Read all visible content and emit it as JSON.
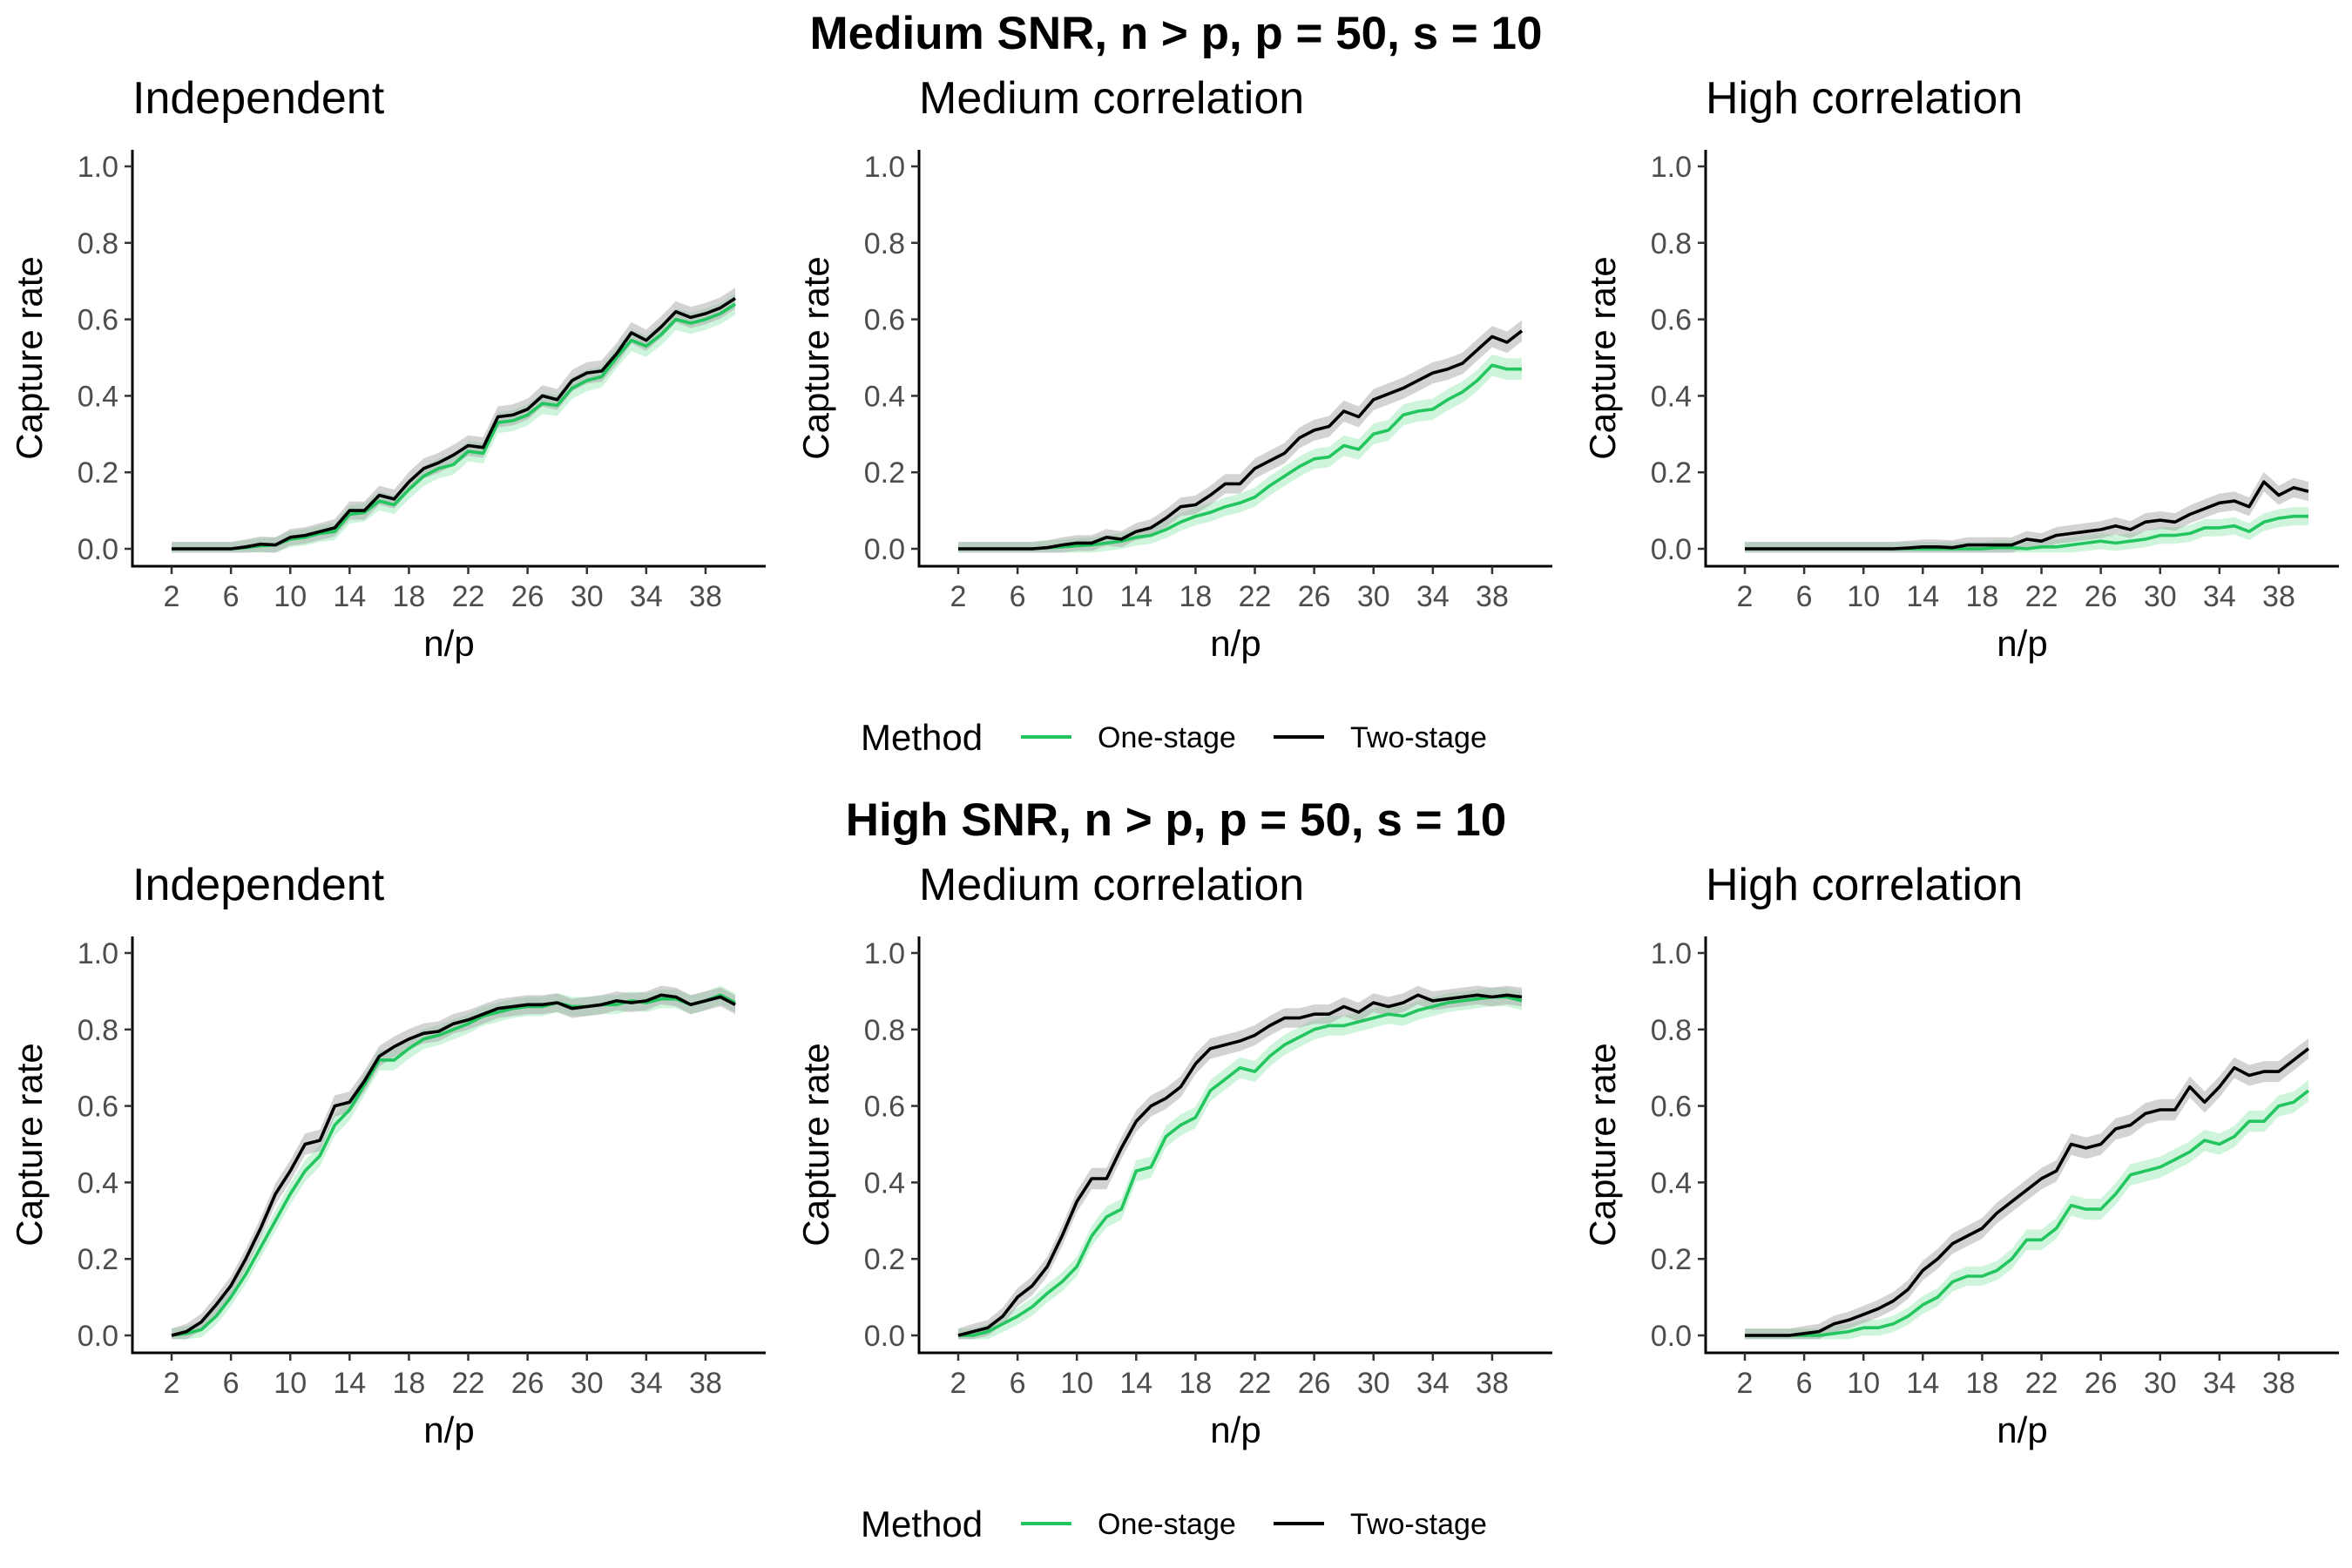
{
  "legend": {
    "title": "Method",
    "items": [
      {
        "label": "One-stage",
        "color": "#22c55e"
      },
      {
        "label": "Two-stage",
        "color": "#000000"
      }
    ]
  },
  "colors": {
    "one_stage": "#22c55e",
    "one_stage_band": "#a7ebbf",
    "two_stage": "#000000",
    "two_stage_band": "#9e9e9e"
  },
  "chart_data": [
    {
      "title": "Medium SNR, n > p, p = 50, s = 10",
      "panels": [
        {
          "type": "line",
          "title": "Independent",
          "xlabel": "n/p",
          "ylabel": "Capture rate",
          "xlim": [
            2,
            40
          ],
          "ylim": [
            0,
            1
          ],
          "xticks": [
            2,
            6,
            10,
            14,
            18,
            22,
            26,
            30,
            34,
            38
          ],
          "yticks": [
            "0.0",
            "0.2",
            "0.4",
            "0.6",
            "0.8",
            "1.0"
          ],
          "x": [
            2,
            3,
            4,
            5,
            6,
            7,
            8,
            9,
            10,
            11,
            12,
            13,
            14,
            15,
            16,
            17,
            18,
            19,
            20,
            21,
            22,
            23,
            24,
            25,
            26,
            27,
            28,
            29,
            30,
            31,
            32,
            33,
            34,
            35,
            36,
            37,
            38,
            39,
            40
          ],
          "series": [
            {
              "name": "One-stage",
              "values": [
                0,
                0,
                0,
                0,
                0,
                0.003,
                0.008,
                0.01,
                0.025,
                0.03,
                0.04,
                0.045,
                0.09,
                0.095,
                0.125,
                0.115,
                0.155,
                0.19,
                0.21,
                0.22,
                0.255,
                0.25,
                0.33,
                0.335,
                0.35,
                0.38,
                0.375,
                0.42,
                0.44,
                0.45,
                0.5,
                0.545,
                0.53,
                0.56,
                0.6,
                0.59,
                0.6,
                0.615,
                0.64
              ]
            },
            {
              "name": "Two-stage",
              "values": [
                0,
                0,
                0,
                0,
                0,
                0.005,
                0.012,
                0.01,
                0.03,
                0.035,
                0.045,
                0.055,
                0.1,
                0.1,
                0.14,
                0.13,
                0.175,
                0.21,
                0.225,
                0.245,
                0.27,
                0.265,
                0.345,
                0.35,
                0.365,
                0.4,
                0.39,
                0.44,
                0.46,
                0.465,
                0.51,
                0.565,
                0.545,
                0.58,
                0.62,
                0.605,
                0.615,
                0.63,
                0.655
              ]
            }
          ]
        },
        {
          "type": "line",
          "title": "Medium correlation",
          "xlabel": "n/p",
          "ylabel": "Capture rate",
          "xlim": [
            2,
            40
          ],
          "ylim": [
            0,
            1
          ],
          "xticks": [
            2,
            6,
            10,
            14,
            18,
            22,
            26,
            30,
            34,
            38
          ],
          "yticks": [
            "0.0",
            "0.2",
            "0.4",
            "0.6",
            "0.8",
            "1.0"
          ],
          "x": [
            2,
            3,
            4,
            5,
            6,
            7,
            8,
            9,
            10,
            11,
            12,
            13,
            14,
            15,
            16,
            17,
            18,
            19,
            20,
            21,
            22,
            23,
            24,
            25,
            26,
            27,
            28,
            29,
            30,
            31,
            32,
            33,
            34,
            35,
            36,
            37,
            38,
            39,
            40
          ],
          "series": [
            {
              "name": "One-stage",
              "values": [
                0,
                0,
                0,
                0,
                0,
                0,
                0.003,
                0.005,
                0.008,
                0.01,
                0.015,
                0.02,
                0.03,
                0.035,
                0.05,
                0.07,
                0.085,
                0.095,
                0.11,
                0.12,
                0.135,
                0.165,
                0.19,
                0.215,
                0.235,
                0.24,
                0.27,
                0.26,
                0.3,
                0.31,
                0.35,
                0.36,
                0.365,
                0.39,
                0.41,
                0.44,
                0.48,
                0.47,
                0.47
              ]
            },
            {
              "name": "Two-stage",
              "values": [
                0,
                0,
                0,
                0,
                0,
                0,
                0.003,
                0.01,
                0.015,
                0.015,
                0.03,
                0.025,
                0.045,
                0.055,
                0.08,
                0.11,
                0.115,
                0.14,
                0.17,
                0.17,
                0.21,
                0.23,
                0.25,
                0.29,
                0.31,
                0.32,
                0.36,
                0.345,
                0.39,
                0.405,
                0.42,
                0.44,
                0.46,
                0.47,
                0.485,
                0.52,
                0.555,
                0.54,
                0.57
              ]
            }
          ]
        },
        {
          "type": "line",
          "title": "High correlation",
          "xlabel": "n/p",
          "ylabel": "Capture rate",
          "xlim": [
            2,
            40
          ],
          "ylim": [
            0,
            1
          ],
          "xticks": [
            2,
            6,
            10,
            14,
            18,
            22,
            26,
            30,
            34,
            38
          ],
          "yticks": [
            "0.0",
            "0.2",
            "0.4",
            "0.6",
            "0.8",
            "1.0"
          ],
          "x": [
            2,
            3,
            4,
            5,
            6,
            7,
            8,
            9,
            10,
            11,
            12,
            13,
            14,
            15,
            16,
            17,
            18,
            19,
            20,
            21,
            22,
            23,
            24,
            25,
            26,
            27,
            28,
            29,
            30,
            31,
            32,
            33,
            34,
            35,
            36,
            37,
            38,
            39,
            40
          ],
          "series": [
            {
              "name": "One-stage",
              "values": [
                0,
                0,
                0,
                0,
                0,
                0,
                0,
                0,
                0,
                0,
                0,
                0,
                0,
                0,
                0,
                0,
                0,
                0.003,
                0.003,
                0,
                0.005,
                0.005,
                0.01,
                0.015,
                0.02,
                0.015,
                0.02,
                0.025,
                0.035,
                0.035,
                0.04,
                0.055,
                0.055,
                0.06,
                0.045,
                0.07,
                0.08,
                0.085,
                0.085
              ]
            },
            {
              "name": "Two-stage",
              "values": [
                0,
                0,
                0,
                0,
                0,
                0,
                0,
                0,
                0,
                0,
                0,
                0.002,
                0.005,
                0.005,
                0.003,
                0.01,
                0.01,
                0.01,
                0.01,
                0.025,
                0.02,
                0.035,
                0.04,
                0.045,
                0.05,
                0.06,
                0.05,
                0.07,
                0.075,
                0.07,
                0.09,
                0.105,
                0.12,
                0.125,
                0.11,
                0.175,
                0.14,
                0.16,
                0.15
              ]
            }
          ]
        }
      ]
    },
    {
      "title": "High SNR, n > p, p = 50, s = 10",
      "panels": [
        {
          "type": "line",
          "title": "Independent",
          "xlabel": "n/p",
          "ylabel": "Capture rate",
          "xlim": [
            2,
            40
          ],
          "ylim": [
            0,
            1
          ],
          "xticks": [
            2,
            6,
            10,
            14,
            18,
            22,
            26,
            30,
            34,
            38
          ],
          "yticks": [
            "0.0",
            "0.2",
            "0.4",
            "0.6",
            "0.8",
            "1.0"
          ],
          "x": [
            2,
            3,
            4,
            5,
            6,
            7,
            8,
            9,
            10,
            11,
            12,
            13,
            14,
            15,
            16,
            17,
            18,
            19,
            20,
            21,
            22,
            23,
            24,
            25,
            26,
            27,
            28,
            29,
            30,
            31,
            32,
            33,
            34,
            35,
            36,
            37,
            38,
            39,
            40
          ],
          "series": [
            {
              "name": "One-stage",
              "values": [
                0,
                0.005,
                0.015,
                0.05,
                0.1,
                0.16,
                0.23,
                0.3,
                0.37,
                0.43,
                0.47,
                0.55,
                0.59,
                0.655,
                0.72,
                0.72,
                0.75,
                0.775,
                0.785,
                0.8,
                0.815,
                0.835,
                0.845,
                0.855,
                0.86,
                0.86,
                0.87,
                0.86,
                0.86,
                0.865,
                0.865,
                0.875,
                0.87,
                0.88,
                0.88,
                0.865,
                0.875,
                0.89,
                0.87
              ]
            },
            {
              "name": "Two-stage",
              "values": [
                0,
                0.01,
                0.035,
                0.08,
                0.13,
                0.2,
                0.28,
                0.37,
                0.43,
                0.5,
                0.51,
                0.6,
                0.61,
                0.665,
                0.73,
                0.755,
                0.775,
                0.79,
                0.795,
                0.815,
                0.825,
                0.84,
                0.855,
                0.86,
                0.865,
                0.865,
                0.87,
                0.855,
                0.86,
                0.865,
                0.875,
                0.87,
                0.875,
                0.89,
                0.885,
                0.865,
                0.875,
                0.885,
                0.865
              ]
            }
          ]
        },
        {
          "type": "line",
          "title": "Medium correlation",
          "xlabel": "n/p",
          "ylabel": "Capture rate",
          "xlim": [
            2,
            40
          ],
          "ylim": [
            0,
            1
          ],
          "xticks": [
            2,
            6,
            10,
            14,
            18,
            22,
            26,
            30,
            34,
            38
          ],
          "yticks": [
            "0.0",
            "0.2",
            "0.4",
            "0.6",
            "0.8",
            "1.0"
          ],
          "x": [
            2,
            3,
            4,
            5,
            6,
            7,
            8,
            9,
            10,
            11,
            12,
            13,
            14,
            15,
            16,
            17,
            18,
            19,
            20,
            21,
            22,
            23,
            24,
            25,
            26,
            27,
            28,
            29,
            30,
            31,
            32,
            33,
            34,
            35,
            36,
            37,
            38,
            39,
            40
          ],
          "series": [
            {
              "name": "One-stage",
              "values": [
                0,
                0,
                0.01,
                0.03,
                0.05,
                0.075,
                0.11,
                0.14,
                0.18,
                0.26,
                0.31,
                0.33,
                0.43,
                0.44,
                0.52,
                0.55,
                0.57,
                0.64,
                0.67,
                0.7,
                0.69,
                0.73,
                0.76,
                0.78,
                0.8,
                0.81,
                0.81,
                0.82,
                0.83,
                0.84,
                0.835,
                0.85,
                0.86,
                0.87,
                0.875,
                0.88,
                0.885,
                0.885,
                0.875
              ]
            },
            {
              "name": "Two-stage",
              "values": [
                0,
                0.01,
                0.02,
                0.05,
                0.1,
                0.13,
                0.18,
                0.26,
                0.35,
                0.41,
                0.41,
                0.49,
                0.56,
                0.6,
                0.62,
                0.65,
                0.71,
                0.75,
                0.76,
                0.77,
                0.785,
                0.81,
                0.83,
                0.83,
                0.84,
                0.84,
                0.86,
                0.845,
                0.87,
                0.86,
                0.87,
                0.89,
                0.875,
                0.88,
                0.885,
                0.89,
                0.885,
                0.89,
                0.885
              ]
            }
          ]
        },
        {
          "type": "line",
          "title": "High correlation",
          "xlabel": "n/p",
          "ylabel": "Capture rate",
          "xlim": [
            2,
            40
          ],
          "ylim": [
            0,
            1
          ],
          "xticks": [
            2,
            6,
            10,
            14,
            18,
            22,
            26,
            30,
            34,
            38
          ],
          "yticks": [
            "0.0",
            "0.2",
            "0.4",
            "0.6",
            "0.8",
            "1.0"
          ],
          "x": [
            2,
            3,
            4,
            5,
            6,
            7,
            8,
            9,
            10,
            11,
            12,
            13,
            14,
            15,
            16,
            17,
            18,
            19,
            20,
            21,
            22,
            23,
            24,
            25,
            26,
            27,
            28,
            29,
            30,
            31,
            32,
            33,
            34,
            35,
            36,
            37,
            38,
            39,
            40
          ],
          "series": [
            {
              "name": "One-stage",
              "values": [
                0,
                0,
                0,
                0,
                0,
                0,
                0.005,
                0.01,
                0.02,
                0.02,
                0.03,
                0.05,
                0.08,
                0.1,
                0.14,
                0.155,
                0.155,
                0.17,
                0.2,
                0.25,
                0.25,
                0.28,
                0.34,
                0.33,
                0.33,
                0.37,
                0.42,
                0.43,
                0.44,
                0.46,
                0.48,
                0.51,
                0.5,
                0.52,
                0.56,
                0.56,
                0.6,
                0.61,
                0.64
              ]
            },
            {
              "name": "Two-stage",
              "values": [
                0,
                0,
                0,
                0,
                0.005,
                0.01,
                0.03,
                0.04,
                0.055,
                0.07,
                0.09,
                0.12,
                0.17,
                0.2,
                0.24,
                0.26,
                0.28,
                0.32,
                0.35,
                0.38,
                0.41,
                0.43,
                0.5,
                0.49,
                0.5,
                0.54,
                0.55,
                0.58,
                0.59,
                0.59,
                0.65,
                0.61,
                0.65,
                0.7,
                0.68,
                0.69,
                0.69,
                0.72,
                0.75
              ]
            }
          ]
        }
      ]
    }
  ]
}
